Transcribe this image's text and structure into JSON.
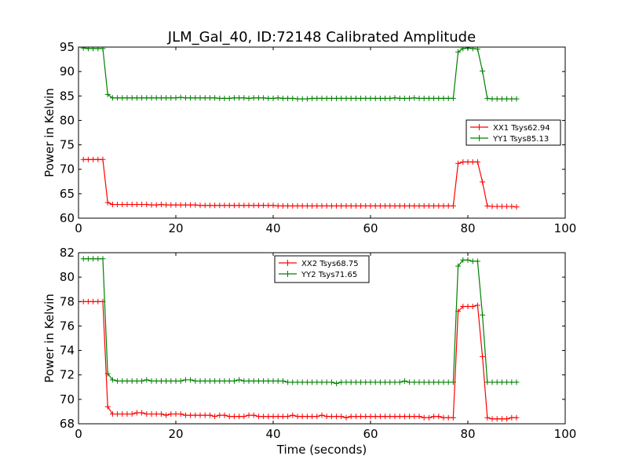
{
  "chart_data": [
    {
      "type": "line",
      "title": "JLM_Gal_40, ID:72148 Calibrated Amplitude",
      "xlabel": "",
      "ylabel": "Power in Kelvin",
      "xlim": [
        0,
        100
      ],
      "ylim": [
        60,
        95
      ],
      "xticks": [
        "0",
        "20",
        "40",
        "60",
        "80",
        "100"
      ],
      "yticks": [
        "60",
        "65",
        "70",
        "75",
        "80",
        "85",
        "90",
        "95"
      ],
      "grid": false,
      "legend_position": "center-right",
      "series": [
        {
          "name": "XX1 Tsys62.94",
          "color": "#ff0000",
          "x": [
            1,
            2,
            3,
            4,
            5,
            6,
            7,
            8,
            9,
            10,
            11,
            12,
            13,
            14,
            15,
            16,
            17,
            18,
            19,
            20,
            21,
            22,
            23,
            24,
            25,
            26,
            27,
            28,
            29,
            30,
            31,
            32,
            33,
            34,
            35,
            36,
            37,
            38,
            39,
            40,
            41,
            42,
            43,
            44,
            45,
            46,
            47,
            48,
            49,
            50,
            51,
            52,
            53,
            54,
            55,
            56,
            57,
            58,
            59,
            60,
            61,
            62,
            63,
            64,
            65,
            66,
            67,
            68,
            69,
            70,
            71,
            72,
            73,
            74,
            75,
            76,
            77,
            78,
            79,
            80,
            81,
            82,
            83,
            84,
            85,
            86,
            87,
            88,
            89,
            90
          ],
          "y": [
            72.0,
            72.0,
            72.0,
            72.0,
            72.0,
            63.2,
            62.8,
            62.8,
            62.8,
            62.8,
            62.8,
            62.8,
            62.8,
            62.8,
            62.7,
            62.7,
            62.8,
            62.7,
            62.7,
            62.7,
            62.7,
            62.7,
            62.7,
            62.7,
            62.6,
            62.6,
            62.6,
            62.6,
            62.6,
            62.6,
            62.6,
            62.6,
            62.6,
            62.6,
            62.6,
            62.6,
            62.6,
            62.6,
            62.6,
            62.6,
            62.5,
            62.5,
            62.5,
            62.5,
            62.5,
            62.5,
            62.5,
            62.5,
            62.5,
            62.5,
            62.5,
            62.5,
            62.5,
            62.5,
            62.5,
            62.5,
            62.5,
            62.5,
            62.5,
            62.5,
            62.5,
            62.5,
            62.5,
            62.5,
            62.5,
            62.5,
            62.5,
            62.5,
            62.5,
            62.5,
            62.5,
            62.5,
            62.5,
            62.5,
            62.5,
            62.5,
            62.5,
            71.2,
            71.5,
            71.5,
            71.5,
            71.5,
            67.4,
            62.5,
            62.4,
            62.4,
            62.4,
            62.4,
            62.4,
            62.3
          ]
        },
        {
          "name": "YY1 Tsys85.13",
          "color": "#008000",
          "x": [
            1,
            2,
            3,
            4,
            5,
            6,
            7,
            8,
            9,
            10,
            11,
            12,
            13,
            14,
            15,
            16,
            17,
            18,
            19,
            20,
            21,
            22,
            23,
            24,
            25,
            26,
            27,
            28,
            29,
            30,
            31,
            32,
            33,
            34,
            35,
            36,
            37,
            38,
            39,
            40,
            41,
            42,
            43,
            44,
            45,
            46,
            47,
            48,
            49,
            50,
            51,
            52,
            53,
            54,
            55,
            56,
            57,
            58,
            59,
            60,
            61,
            62,
            63,
            64,
            65,
            66,
            67,
            68,
            69,
            70,
            71,
            72,
            73,
            74,
            75,
            76,
            77,
            78,
            79,
            80,
            81,
            82,
            83,
            84,
            85,
            86,
            87,
            88,
            89,
            90
          ],
          "y": [
            94.8,
            94.7,
            94.7,
            94.7,
            94.7,
            85.3,
            84.6,
            84.6,
            84.6,
            84.6,
            84.6,
            84.6,
            84.6,
            84.6,
            84.6,
            84.6,
            84.6,
            84.6,
            84.6,
            84.6,
            84.7,
            84.6,
            84.6,
            84.6,
            84.6,
            84.6,
            84.6,
            84.6,
            84.5,
            84.5,
            84.5,
            84.6,
            84.6,
            84.6,
            84.5,
            84.6,
            84.6,
            84.6,
            84.5,
            84.5,
            84.6,
            84.5,
            84.5,
            84.5,
            84.4,
            84.4,
            84.4,
            84.5,
            84.5,
            84.5,
            84.5,
            84.5,
            84.5,
            84.5,
            84.5,
            84.5,
            84.5,
            84.5,
            84.5,
            84.5,
            84.5,
            84.5,
            84.5,
            84.5,
            84.6,
            84.5,
            84.5,
            84.5,
            84.6,
            84.5,
            84.5,
            84.5,
            84.5,
            84.5,
            84.5,
            84.5,
            84.5,
            94.0,
            94.7,
            94.8,
            94.7,
            94.6,
            90.1,
            84.5,
            84.4,
            84.4,
            84.4,
            84.4,
            84.4,
            84.4
          ]
        }
      ]
    },
    {
      "type": "line",
      "title": "",
      "xlabel": "Time (seconds)",
      "ylabel": "Power in Kelvin",
      "xlim": [
        0,
        100
      ],
      "ylim": [
        68,
        82
      ],
      "xticks": [
        "0",
        "20",
        "40",
        "60",
        "80",
        "100"
      ],
      "yticks": [
        "68",
        "70",
        "72",
        "74",
        "76",
        "78",
        "80",
        "82"
      ],
      "grid": false,
      "legend_position": "top-center",
      "series": [
        {
          "name": "XX2 Tsys68.75",
          "color": "#ff0000",
          "x": [
            1,
            2,
            3,
            4,
            5,
            6,
            7,
            8,
            9,
            10,
            11,
            12,
            13,
            14,
            15,
            16,
            17,
            18,
            19,
            20,
            21,
            22,
            23,
            24,
            25,
            26,
            27,
            28,
            29,
            30,
            31,
            32,
            33,
            34,
            35,
            36,
            37,
            38,
            39,
            40,
            41,
            42,
            43,
            44,
            45,
            46,
            47,
            48,
            49,
            50,
            51,
            52,
            53,
            54,
            55,
            56,
            57,
            58,
            59,
            60,
            61,
            62,
            63,
            64,
            65,
            66,
            67,
            68,
            69,
            70,
            71,
            72,
            73,
            74,
            75,
            76,
            77,
            78,
            79,
            80,
            81,
            82,
            83,
            84,
            85,
            86,
            87,
            88,
            89,
            90
          ],
          "y": [
            78.0,
            78.0,
            78.0,
            78.0,
            78.0,
            69.4,
            68.8,
            68.8,
            68.8,
            68.8,
            68.8,
            68.9,
            68.9,
            68.8,
            68.8,
            68.8,
            68.8,
            68.7,
            68.8,
            68.8,
            68.8,
            68.7,
            68.7,
            68.7,
            68.7,
            68.7,
            68.7,
            68.6,
            68.7,
            68.7,
            68.6,
            68.6,
            68.6,
            68.6,
            68.7,
            68.7,
            68.6,
            68.6,
            68.6,
            68.6,
            68.6,
            68.6,
            68.6,
            68.7,
            68.6,
            68.6,
            68.6,
            68.6,
            68.6,
            68.7,
            68.6,
            68.6,
            68.6,
            68.6,
            68.5,
            68.6,
            68.6,
            68.6,
            68.6,
            68.6,
            68.6,
            68.6,
            68.6,
            68.6,
            68.6,
            68.6,
            68.6,
            68.6,
            68.6,
            68.6,
            68.5,
            68.5,
            68.6,
            68.6,
            68.5,
            68.5,
            68.5,
            77.2,
            77.6,
            77.6,
            77.6,
            77.7,
            73.5,
            68.5,
            68.4,
            68.4,
            68.4,
            68.4,
            68.5,
            68.5
          ]
        },
        {
          "name": "YY2 Tsys71.65",
          "color": "#008000",
          "x": [
            1,
            2,
            3,
            4,
            5,
            6,
            7,
            8,
            9,
            10,
            11,
            12,
            13,
            14,
            15,
            16,
            17,
            18,
            19,
            20,
            21,
            22,
            23,
            24,
            25,
            26,
            27,
            28,
            29,
            30,
            31,
            32,
            33,
            34,
            35,
            36,
            37,
            38,
            39,
            40,
            41,
            42,
            43,
            44,
            45,
            46,
            47,
            48,
            49,
            50,
            51,
            52,
            53,
            54,
            55,
            56,
            57,
            58,
            59,
            60,
            61,
            62,
            63,
            64,
            65,
            66,
            67,
            68,
            69,
            70,
            71,
            72,
            73,
            74,
            75,
            76,
            77,
            78,
            79,
            80,
            81,
            82,
            83,
            84,
            85,
            86,
            87,
            88,
            89,
            90
          ],
          "y": [
            81.5,
            81.5,
            81.5,
            81.5,
            81.5,
            72.1,
            71.6,
            71.5,
            71.5,
            71.5,
            71.5,
            71.5,
            71.5,
            71.6,
            71.5,
            71.5,
            71.5,
            71.5,
            71.5,
            71.5,
            71.5,
            71.6,
            71.6,
            71.5,
            71.5,
            71.5,
            71.5,
            71.5,
            71.5,
            71.5,
            71.5,
            71.5,
            71.6,
            71.5,
            71.5,
            71.5,
            71.5,
            71.5,
            71.5,
            71.5,
            71.5,
            71.5,
            71.4,
            71.4,
            71.4,
            71.4,
            71.4,
            71.4,
            71.4,
            71.4,
            71.4,
            71.4,
            71.3,
            71.4,
            71.4,
            71.4,
            71.4,
            71.4,
            71.4,
            71.4,
            71.4,
            71.4,
            71.4,
            71.4,
            71.4,
            71.4,
            71.5,
            71.4,
            71.4,
            71.4,
            71.4,
            71.4,
            71.4,
            71.4,
            71.4,
            71.4,
            71.4,
            80.9,
            81.4,
            81.4,
            81.3,
            81.3,
            76.9,
            71.4,
            71.4,
            71.4,
            71.4,
            71.4,
            71.4,
            71.4
          ]
        }
      ]
    }
  ]
}
